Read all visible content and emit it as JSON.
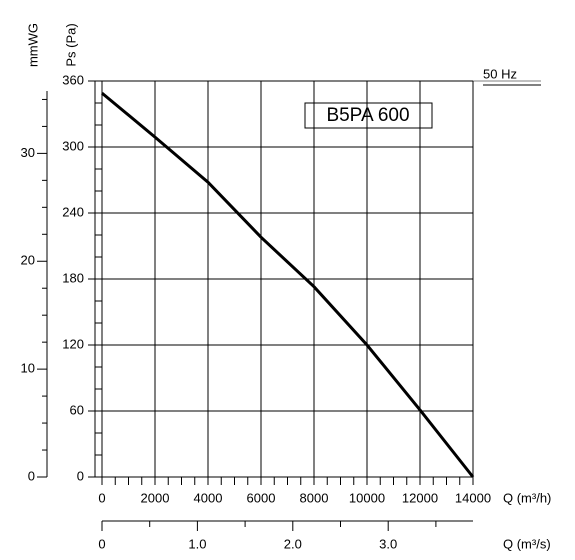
{
  "chart_data": {
    "type": "line",
    "annotation": "B5PA 600",
    "frequency": "50 Hz",
    "y_label": "Ps (Pa)",
    "y2_label": "mmWG",
    "x_label": "Q (m³/h)",
    "x2_label": "Q (m³/s)",
    "x": [
      0,
      2000,
      4000,
      5000,
      6000,
      8000,
      10000,
      12000,
      14000
    ],
    "series": [
      {
        "color": "#000000",
        "values": [
          349,
          309,
          268,
          243,
          218,
          173,
          120,
          61,
          0
        ]
      }
    ],
    "xlim": [
      0,
      14000
    ],
    "xticks": [
      0,
      2000,
      4000,
      6000,
      8000,
      10000,
      12000,
      14000
    ],
    "minor_xticks": [
      500,
      1000,
      1500,
      2500,
      3000,
      3500,
      4500,
      5000,
      5500,
      6500,
      7000,
      7500,
      8500,
      9000,
      9500,
      10500,
      11000,
      11500,
      12500,
      13000,
      13500
    ],
    "x2lim": [
      0,
      3.8889
    ],
    "x2ticks": [
      0,
      {
        "value": 1,
        "label": "1.0"
      },
      {
        "value": 2,
        "label": "2.0"
      },
      {
        "value": 3,
        "label": "3.0"
      }
    ],
    "minor_x2ticks": [
      0.5,
      1.5,
      2.5,
      3.5
    ],
    "ylim": [
      0,
      360
    ],
    "yticks": [
      0,
      60,
      120,
      180,
      240,
      300,
      360
    ],
    "minor_yticks": [
      20,
      40,
      80,
      100,
      140,
      160,
      200,
      220,
      260,
      280,
      320,
      340
    ],
    "y2lim": [
      0,
      36.71
    ],
    "y2ticks": [
      0,
      10,
      20,
      30
    ],
    "minor_y2ticks": [
      2.5,
      5,
      7.5,
      12.5,
      15,
      17.5,
      22.5,
      25,
      27.5,
      32.5,
      35
    ],
    "grid": true
  }
}
